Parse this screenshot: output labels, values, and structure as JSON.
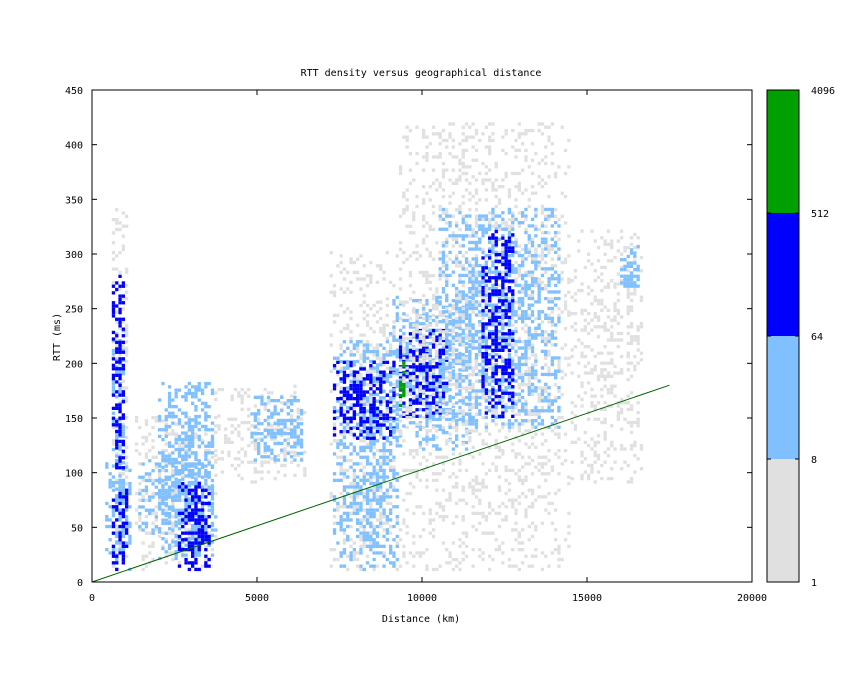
{
  "chart_data": {
    "type": "heatmap",
    "title": "RTT density versus geographical distance",
    "xlabel": "Distance (km)",
    "ylabel": "RTT (ms)",
    "xlim": [
      0,
      20000
    ],
    "ylim": [
      0,
      450
    ],
    "x_ticks": [
      0,
      5000,
      10000,
      15000,
      20000
    ],
    "y_ticks": [
      0,
      50,
      100,
      150,
      200,
      250,
      300,
      350,
      400,
      450
    ],
    "grid": false,
    "colorbar": {
      "ticks": [
        1,
        8,
        64,
        512,
        4096
      ],
      "bands": [
        {
          "from": 1,
          "to": 8,
          "color": "#e0e0e0"
        },
        {
          "from": 8,
          "to": 64,
          "color": "#80c0ff"
        },
        {
          "from": 64,
          "to": 512,
          "color": "#0000ff"
        },
        {
          "from": 512,
          "to": 4096,
          "color": "#00a000"
        }
      ]
    },
    "reference_line": {
      "color": "#006400",
      "points": [
        [
          0,
          0
        ],
        [
          17500,
          180
        ]
      ]
    },
    "density_clusters": [
      {
        "x": [
          400,
          1200
        ],
        "y": [
          10,
          110
        ],
        "level": 1
      },
      {
        "x": [
          600,
          1100
        ],
        "y": [
          10,
          340
        ],
        "level": 0
      },
      {
        "x": [
          600,
          1000
        ],
        "y": [
          20,
          230
        ],
        "level": 1
      },
      {
        "x": [
          600,
          1000
        ],
        "y": [
          100,
          280
        ],
        "level": 2
      },
      {
        "x": [
          600,
          1100
        ],
        "y": [
          10,
          90
        ],
        "level": 2
      },
      {
        "x": [
          1300,
          3800
        ],
        "y": [
          10,
          150
        ],
        "level": 0
      },
      {
        "x": [
          1400,
          3800
        ],
        "y": [
          40,
          110
        ],
        "level": 1
      },
      {
        "x": [
          2000,
          3700
        ],
        "y": [
          20,
          180
        ],
        "level": 1
      },
      {
        "x": [
          2600,
          3600
        ],
        "y": [
          10,
          90
        ],
        "level": 2
      },
      {
        "x": [
          3700,
          6500
        ],
        "y": [
          90,
          180
        ],
        "level": 0
      },
      {
        "x": [
          4800,
          6400
        ],
        "y": [
          110,
          170
        ],
        "level": 1
      },
      {
        "x": [
          7200,
          9300
        ],
        "y": [
          10,
          300
        ],
        "level": 0
      },
      {
        "x": [
          7300,
          9300
        ],
        "y": [
          10,
          220
        ],
        "level": 1
      },
      {
        "x": [
          7300,
          9200
        ],
        "y": [
          130,
          200
        ],
        "level": 2
      },
      {
        "x": [
          9000,
          11500
        ],
        "y": [
          120,
          260
        ],
        "level": 1
      },
      {
        "x": [
          9300,
          10800
        ],
        "y": [
          150,
          230
        ],
        "level": 2
      },
      {
        "x": [
          9300,
          9500
        ],
        "y": [
          160,
          200
        ],
        "level": 3
      },
      {
        "x": [
          9300,
          14500
        ],
        "y": [
          10,
          420
        ],
        "level": 0
      },
      {
        "x": [
          10500,
          14200
        ],
        "y": [
          140,
          340
        ],
        "level": 1
      },
      {
        "x": [
          11800,
          12800
        ],
        "y": [
          150,
          320
        ],
        "level": 2
      },
      {
        "x": [
          14500,
          16700
        ],
        "y": [
          90,
          320
        ],
        "level": 0
      },
      {
        "x": [
          16000,
          16600
        ],
        "y": [
          260,
          310
        ],
        "level": 1
      }
    ]
  }
}
